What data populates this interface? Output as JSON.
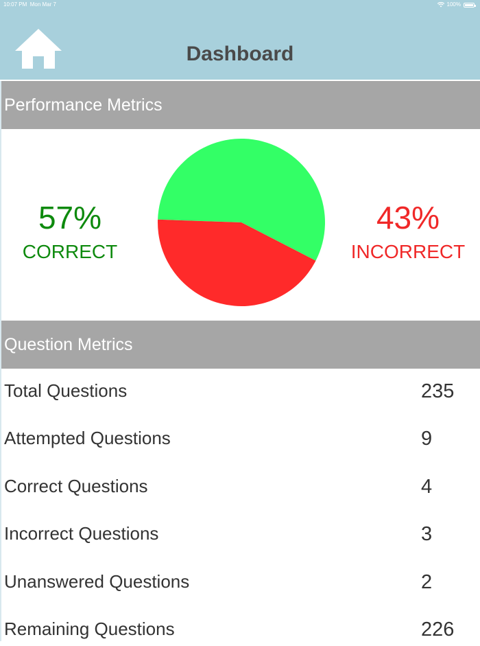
{
  "status_bar": {
    "time": "10:07 PM",
    "date": "Mon Mar 7",
    "battery": "100%"
  },
  "nav": {
    "title": "Dashboard",
    "home_icon": "home-icon"
  },
  "performance": {
    "header": "Performance Metrics",
    "correct_pct": "57%",
    "correct_label": "CORRECT",
    "incorrect_pct": "43%",
    "incorrect_label": "INCORRECT"
  },
  "chart_data": {
    "type": "pie",
    "slices": [
      {
        "label": "CORRECT",
        "value": 57,
        "color": "#33ff66"
      },
      {
        "label": "INCORRECT",
        "value": 43,
        "color": "#ff2a2a"
      }
    ]
  },
  "questions": {
    "header": "Question Metrics",
    "rows": [
      {
        "label": "Total Questions",
        "value": "235"
      },
      {
        "label": "Attempted Questions",
        "value": "9"
      },
      {
        "label": "Correct Questions",
        "value": "4"
      },
      {
        "label": "Incorrect Questions",
        "value": "3"
      },
      {
        "label": "Unanswered Questions",
        "value": "2"
      },
      {
        "label": "Remaining Questions",
        "value": "226"
      }
    ]
  },
  "colors": {
    "nav_background": "#a8d0dc",
    "section_header": "#a6a6a6",
    "correct": "#0e8a0e",
    "incorrect": "#f02828"
  }
}
